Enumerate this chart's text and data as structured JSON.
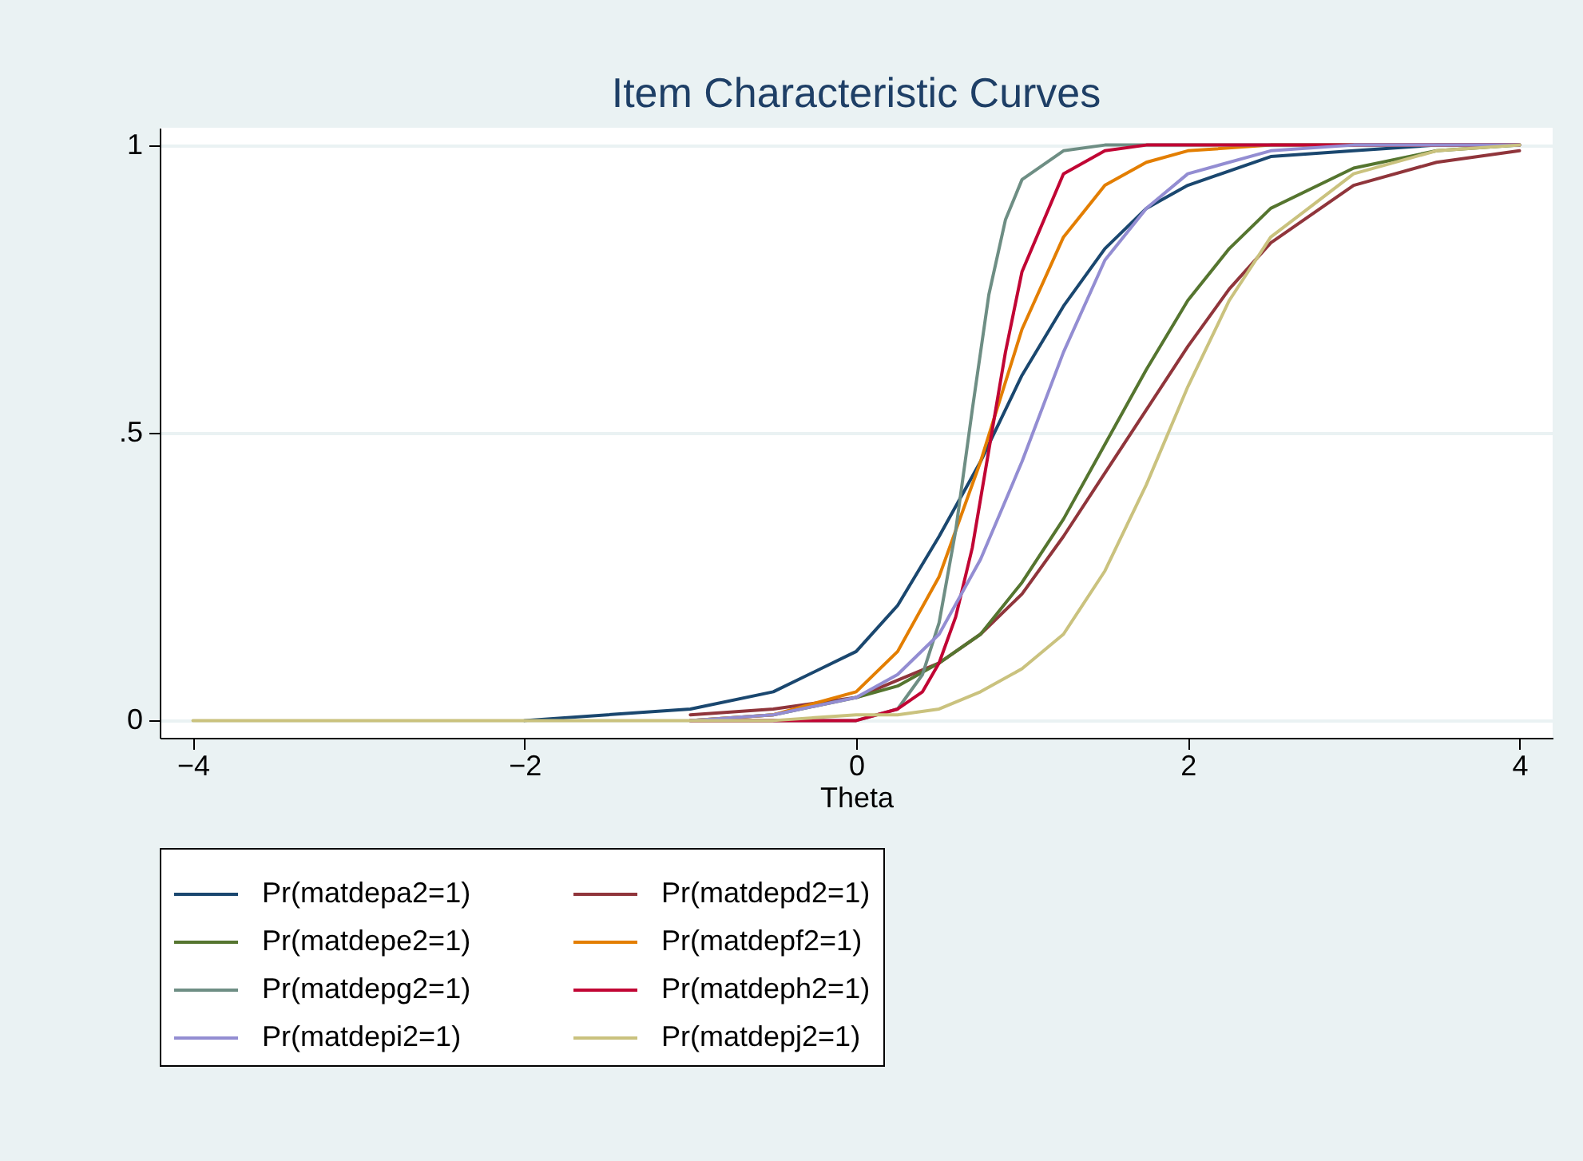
{
  "chart_data": {
    "type": "line",
    "title": "Item Characteristic Curves",
    "xlabel": "Theta",
    "xlim": [
      -4.2,
      4.2
    ],
    "ylim": [
      -0.03,
      1.03
    ],
    "xticks": [
      -4,
      -2,
      0,
      2,
      4
    ],
    "yticks": [
      0,
      {
        "value": 0.5,
        "label": ".5"
      },
      1
    ],
    "grid": "y",
    "legend": "bottom",
    "line_style": "solid",
    "marker": "none",
    "series": [
      {
        "name": "Pr(matdepa2=1)",
        "color": "#1a476f",
        "x": [
          -2,
          -1.5,
          -1,
          -0.5,
          0,
          0.25,
          0.5,
          0.75,
          1,
          1.25,
          1.5,
          1.75,
          2,
          2.5,
          3,
          3.5,
          4
        ],
        "values": [
          0,
          0.01,
          0.02,
          0.05,
          0.12,
          0.2,
          0.32,
          0.45,
          0.6,
          0.72,
          0.82,
          0.89,
          0.93,
          0.98,
          0.99,
          1,
          1
        ]
      },
      {
        "name": "Pr(matdepd2=1)",
        "color": "#90353b",
        "x": [
          -1,
          -0.5,
          0,
          0.25,
          0.5,
          0.75,
          1,
          1.25,
          1.5,
          1.75,
          2,
          2.25,
          2.5,
          3,
          3.5,
          4
        ],
        "values": [
          0.01,
          0.02,
          0.04,
          0.07,
          0.1,
          0.15,
          0.22,
          0.32,
          0.43,
          0.54,
          0.65,
          0.75,
          0.83,
          0.93,
          0.97,
          0.99
        ]
      },
      {
        "name": "Pr(matdepe2=1)",
        "color": "#55752f",
        "x": [
          -1,
          -0.5,
          0,
          0.25,
          0.5,
          0.75,
          1,
          1.25,
          1.5,
          1.75,
          2,
          2.25,
          2.5,
          3,
          3.5,
          4
        ],
        "values": [
          0,
          0.01,
          0.04,
          0.06,
          0.1,
          0.15,
          0.24,
          0.35,
          0.48,
          0.61,
          0.73,
          0.82,
          0.89,
          0.96,
          0.99,
          1
        ]
      },
      {
        "name": "Pr(matdepf2=1)",
        "color": "#e37e00",
        "x": [
          -1,
          -0.5,
          0,
          0.25,
          0.5,
          0.75,
          1,
          1.25,
          1.5,
          1.75,
          2,
          2.5,
          3,
          4
        ],
        "values": [
          0,
          0.01,
          0.05,
          0.12,
          0.25,
          0.45,
          0.68,
          0.84,
          0.93,
          0.97,
          0.99,
          1,
          1,
          1
        ]
      },
      {
        "name": "Pr(matdepg2=1)",
        "color": "#6e8e84",
        "x": [
          -1,
          0,
          0.25,
          0.4,
          0.5,
          0.6,
          0.7,
          0.8,
          0.9,
          1,
          1.25,
          1.5,
          2,
          3,
          4
        ],
        "values": [
          0,
          0,
          0.02,
          0.08,
          0.17,
          0.33,
          0.54,
          0.74,
          0.87,
          0.94,
          0.99,
          1,
          1,
          1,
          1
        ]
      },
      {
        "name": "Pr(matdeph2=1)",
        "color": "#c10534",
        "x": [
          -1,
          0,
          0.25,
          0.4,
          0.5,
          0.6,
          0.7,
          0.8,
          0.9,
          1,
          1.25,
          1.5,
          1.75,
          2,
          3,
          4
        ],
        "values": [
          0,
          0,
          0.02,
          0.05,
          0.1,
          0.18,
          0.3,
          0.47,
          0.64,
          0.78,
          0.95,
          0.99,
          1,
          1,
          1,
          1
        ]
      },
      {
        "name": "Pr(matdepi2=1)",
        "color": "#938dd2",
        "x": [
          -1,
          -0.5,
          0,
          0.25,
          0.5,
          0.75,
          1,
          1.25,
          1.5,
          1.75,
          2,
          2.5,
          3,
          4
        ],
        "values": [
          0,
          0.01,
          0.04,
          0.08,
          0.15,
          0.28,
          0.45,
          0.64,
          0.8,
          0.89,
          0.95,
          0.99,
          1,
          1
        ]
      },
      {
        "name": "Pr(matdepj2=1)",
        "color": "#cac27e",
        "x": [
          -4,
          -3,
          -2,
          -1,
          -0.5,
          0,
          0.25,
          0.5,
          0.75,
          1,
          1.25,
          1.5,
          1.75,
          2,
          2.25,
          2.5,
          3,
          3.5,
          4
        ],
        "values": [
          0,
          0,
          0,
          0,
          0,
          0.01,
          0.01,
          0.02,
          0.05,
          0.09,
          0.15,
          0.26,
          0.41,
          0.58,
          0.73,
          0.84,
          0.95,
          0.99,
          1
        ]
      }
    ]
  }
}
